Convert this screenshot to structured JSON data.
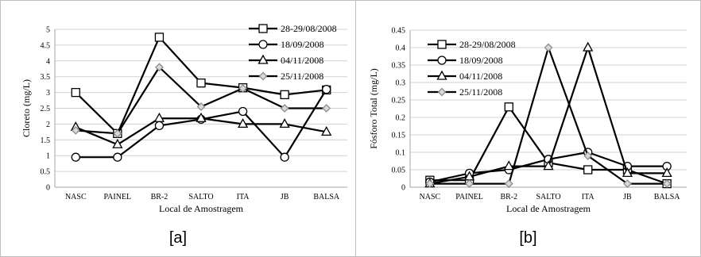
{
  "chart_data": [
    {
      "type": "line",
      "panel_label": "[a]",
      "xlabel": "Local de Amostragem",
      "ylabel": "Cloreto (mg/L)",
      "ylim": [
        0,
        5
      ],
      "y_ticks": [
        "0",
        "0.5",
        "1",
        "1.5",
        "2",
        "2.5",
        "3",
        "3.5",
        "4",
        "4.5",
        "5"
      ],
      "grid": true,
      "legend_placement": "top-right",
      "categories": [
        "NASC",
        "PAINEL",
        "BR-2",
        "SALTO",
        "ITA",
        "JB",
        "BALSA"
      ],
      "series": [
        {
          "name": "28-29/08/2008",
          "marker": "square",
          "color": "#000000",
          "values": [
            3.0,
            1.7,
            4.75,
            3.3,
            3.15,
            2.93,
            3.08
          ]
        },
        {
          "name": "18/09/2008",
          "marker": "circle",
          "color": "#000000",
          "values": [
            0.95,
            0.95,
            1.95,
            2.15,
            2.4,
            0.95,
            3.1
          ]
        },
        {
          "name": "04/11/2008",
          "marker": "triangle",
          "color": "#000000",
          "values": [
            1.9,
            1.35,
            2.18,
            2.18,
            2.0,
            2.0,
            1.75
          ]
        },
        {
          "name": "25/11/2008",
          "marker": "diamond",
          "color": "#000000",
          "values": [
            1.8,
            1.7,
            3.8,
            2.55,
            3.13,
            2.5,
            2.5
          ]
        }
      ]
    },
    {
      "type": "line",
      "panel_label": "[b]",
      "xlabel": "Local de Amostragem",
      "ylabel": "Fósforo Total (mg/L)",
      "ylim": [
        0,
        0.45
      ],
      "y_ticks": [
        "0",
        "0.05",
        "0.1",
        "0.15",
        "0.2",
        "0.25",
        "0.3",
        "0.35",
        "0.4",
        "0.45"
      ],
      "grid": true,
      "legend_placement": "top-left",
      "categories": [
        "NASC",
        "PAINEL",
        "BR-2",
        "SALTO",
        "ITA",
        "JB",
        "BALSA"
      ],
      "series": [
        {
          "name": "28-29/08/2008",
          "marker": "square",
          "color": "#000000",
          "values": [
            0.02,
            0.02,
            0.23,
            0.07,
            0.05,
            0.05,
            0.01
          ]
        },
        {
          "name": "18/09/2008",
          "marker": "circle",
          "color": "#000000",
          "values": [
            0.015,
            0.04,
            0.05,
            0.08,
            0.1,
            0.06,
            0.06
          ]
        },
        {
          "name": "04/11/2008",
          "marker": "triangle",
          "color": "#000000",
          "values": [
            0.01,
            0.03,
            0.06,
            0.06,
            0.4,
            0.04,
            0.04
          ]
        },
        {
          "name": "25/11/2008",
          "marker": "diamond",
          "color": "#000000",
          "values": [
            0.01,
            0.01,
            0.01,
            0.4,
            0.09,
            0.01,
            0.01
          ]
        }
      ]
    }
  ]
}
